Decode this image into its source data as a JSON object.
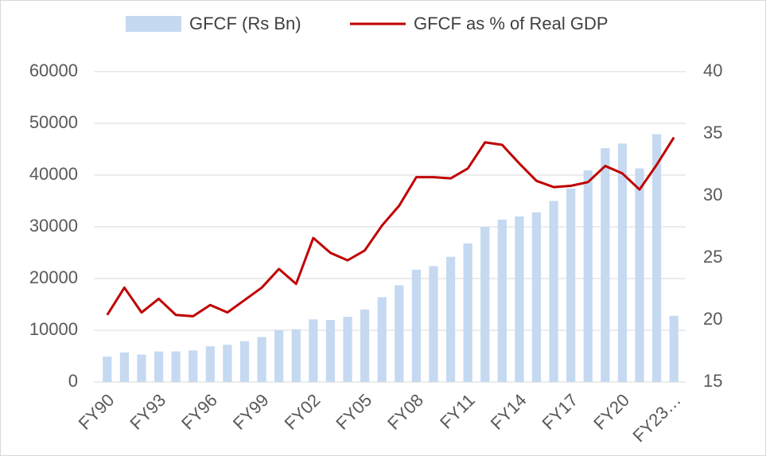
{
  "chart_data": {
    "type": "combo",
    "categories": [
      "FY90",
      null,
      null,
      "FY93",
      null,
      null,
      "FY96",
      null,
      null,
      "FY99",
      null,
      null,
      "FY02",
      null,
      null,
      "FY05",
      null,
      null,
      "FY08",
      null,
      null,
      "FY11",
      null,
      null,
      "FY14",
      null,
      null,
      "FY17",
      null,
      null,
      "FY20",
      null,
      null,
      "FY23…"
    ],
    "series": [
      {
        "name": "GFCF (Rs Bn)",
        "type": "bar",
        "color": "#c5d9f1",
        "values": [
          4900,
          5700,
          5300,
          5900,
          5900,
          6100,
          6900,
          7200,
          7900,
          8700,
          10000,
          10200,
          12100,
          12000,
          12600,
          14000,
          16400,
          18700,
          21700,
          22400,
          24200,
          26800,
          30000,
          31400,
          32000,
          32800,
          35000,
          37400,
          40900,
          45200,
          46100,
          41300,
          47900,
          12800
        ]
      },
      {
        "name": "GFCF as % of Real GDP",
        "type": "line",
        "axis": "y2",
        "color": "#c00000",
        "values": [
          20.4,
          22.6,
          20.6,
          21.7,
          20.4,
          20.3,
          21.2,
          20.6,
          21.6,
          22.6,
          24.1,
          22.9,
          26.6,
          25.4,
          24.8,
          25.6,
          27.6,
          29.2,
          31.5,
          31.5,
          31.4,
          32.2,
          34.3,
          34.1,
          32.6,
          31.2,
          30.7,
          30.8,
          31.1,
          32.4,
          31.8,
          30.5,
          32.5,
          34.7
        ]
      }
    ],
    "ylim": [
      0,
      60000
    ],
    "yticks": [
      0,
      10000,
      20000,
      30000,
      40000,
      50000,
      60000
    ],
    "y2lim": [
      15,
      40
    ],
    "y2ticks": [
      15,
      20,
      25,
      30,
      35,
      40
    ],
    "grid": true,
    "legend": "top"
  }
}
